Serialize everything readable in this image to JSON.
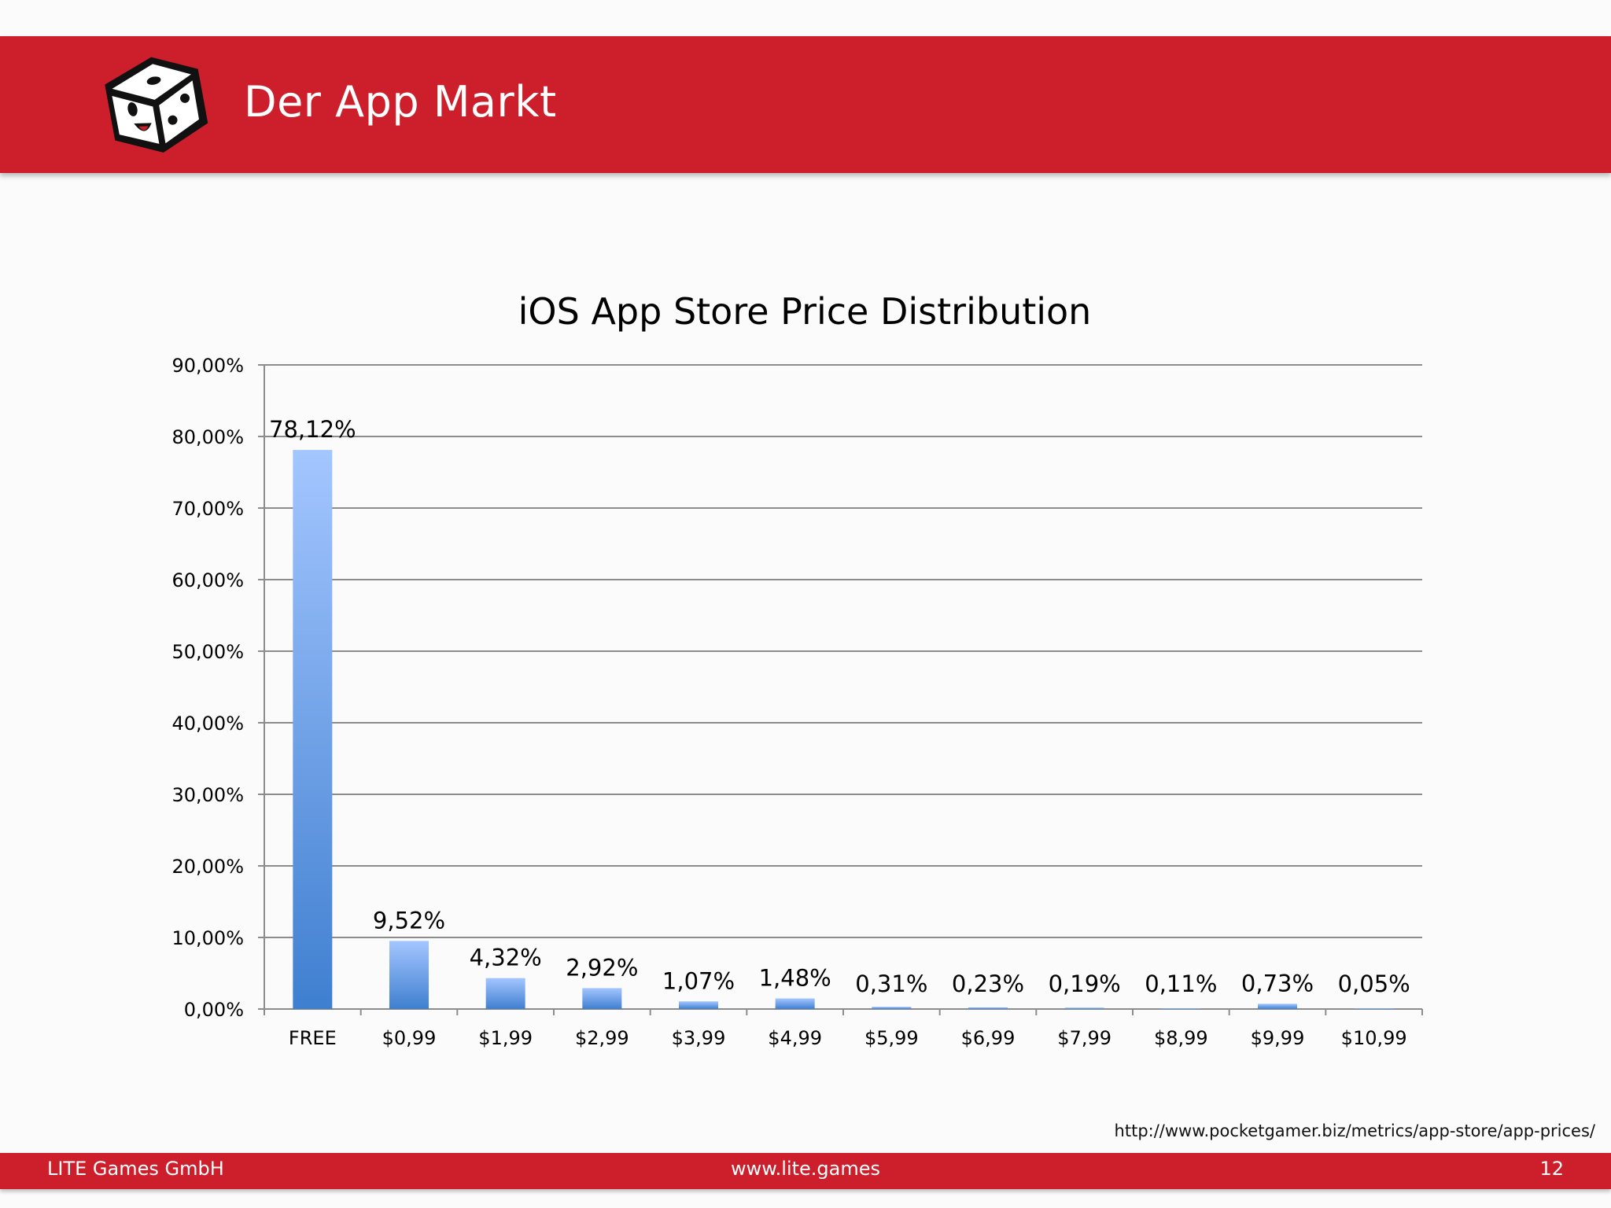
{
  "slide": {
    "title": "Der App Markt",
    "logo_icon": "dice-logo-icon",
    "source": "http://www.pocketgamer.biz/metrics/app-store/app-prices/"
  },
  "footer": {
    "company": "LITE Games GmbH",
    "website": "www.lite.games",
    "page_number": "12"
  },
  "colors": {
    "brand_red": "#cc1f2b",
    "bar_top": "#a4c6ff",
    "bar_bottom": "#3f7fd0"
  },
  "chart_data": {
    "type": "bar",
    "title": "iOS App Store Price Distribution",
    "xlabel": "",
    "ylabel": "",
    "ylim": [
      0,
      90
    ],
    "grid": true,
    "legend": "none",
    "yticks": [
      "0,00%",
      "10,00%",
      "20,00%",
      "30,00%",
      "40,00%",
      "50,00%",
      "60,00%",
      "70,00%",
      "80,00%",
      "90,00%"
    ],
    "categories": [
      "FREE",
      "$0,99",
      "$1,99",
      "$2,99",
      "$3,99",
      "$4,99",
      "$5,99",
      "$6,99",
      "$7,99",
      "$8,99",
      "$9,99",
      "$10,99"
    ],
    "values": [
      78.12,
      9.52,
      4.32,
      2.92,
      1.07,
      1.48,
      0.31,
      0.23,
      0.19,
      0.11,
      0.73,
      0.05
    ],
    "data_labels": [
      "78,12%",
      "9,52%",
      "4,32%",
      "2,92%",
      "1,07%",
      "1,48%",
      "0,31%",
      "0,23%",
      "0,19%",
      "0,11%",
      "0,73%",
      "0,05%"
    ]
  }
}
